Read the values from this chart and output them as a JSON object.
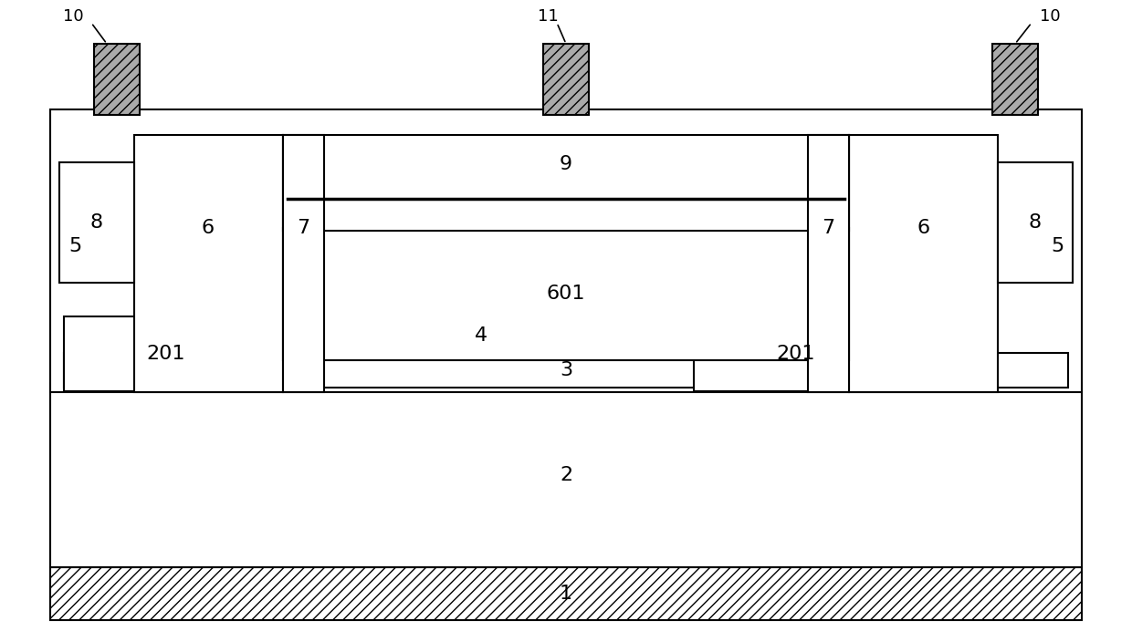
{
  "fig_width": 12.4,
  "fig_height": 7.04,
  "dpi": 100,
  "bg_color": "#ffffff",
  "lc": "#000000",
  "lw": 1.5,
  "font_size_main": 16,
  "font_size_ref": 13,
  "contact_fill": "#aaaaaa"
}
